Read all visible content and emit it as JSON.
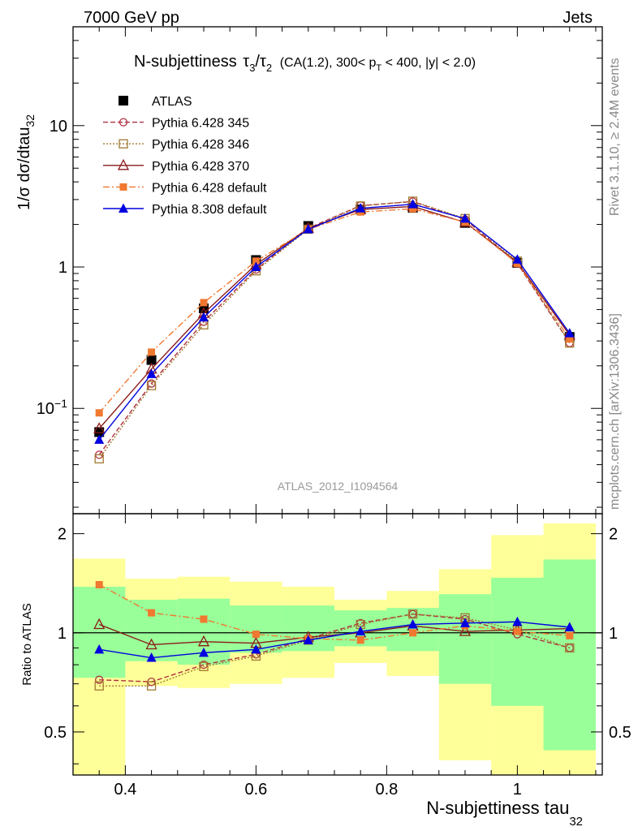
{
  "header": {
    "left": "7000 GeV pp",
    "right": "Jets"
  },
  "side_labels": {
    "rivet": "Rivet 3.1.10, ≥ 2.4M events",
    "mcplots": "mcplots.cern.ch [arXiv:1306.3436]"
  },
  "analysis_id": "ATLAS_2012_I1094564",
  "chart_data": [
    {
      "type": "line",
      "panel": "main",
      "title_parts": {
        "lead": "N-subjettiness",
        "tau_ratio": "τ",
        "idx3": "3",
        "slash": "/",
        "idx2": "2",
        "cuts_a": "(CA(1.2), 300< p",
        "cuts_sub": "T",
        "cuts_b": " < 400, |y| < 2.0)"
      },
      "ylabel": {
        "text": "1/σ dσ/dtau",
        "sub": "32"
      },
      "yscale": "log",
      "ylim": [
        0.018,
        50
      ],
      "xlim": [
        0.32,
        1.13
      ],
      "ytick_labels": [
        {
          "value": 10,
          "label": "10"
        },
        {
          "value": 1,
          "label": "1"
        },
        {
          "value": 0.1,
          "label": "10",
          "sup": "−1"
        }
      ],
      "legend_position": "top-left",
      "x": [
        0.36,
        0.44,
        0.52,
        0.6,
        0.68,
        0.76,
        0.84,
        0.92,
        1.0,
        1.08
      ],
      "series": [
        {
          "name": "ATLAS",
          "color": "#000000",
          "marker": "filled-square",
          "line": "none",
          "values": [
            0.068,
            0.22,
            0.51,
            1.12,
            1.95,
            2.55,
            2.62,
            2.05,
            1.07,
            0.32
          ]
        },
        {
          "name": "Pythia 6.428 345",
          "color": "#b03040",
          "marker": "open-circle",
          "line": "dashed",
          "values": [
            0.047,
            0.15,
            0.41,
            0.96,
            1.88,
            2.72,
            2.9,
            2.17,
            1.06,
            0.29
          ]
        },
        {
          "name": "Pythia 6.428 346",
          "color": "#a07830",
          "marker": "open-square",
          "line": "dotted",
          "values": [
            0.044,
            0.145,
            0.39,
            0.94,
            1.85,
            2.7,
            2.92,
            2.2,
            1.1,
            0.29
          ]
        },
        {
          "name": "Pythia 6.428 370",
          "color": "#8b1a1a",
          "marker": "open-triangle",
          "line": "solid",
          "values": [
            0.072,
            0.19,
            0.47,
            1.04,
            1.88,
            2.55,
            2.68,
            2.07,
            1.08,
            0.33
          ]
        },
        {
          "name": "Pythia 6.428 default",
          "color": "#f07830",
          "marker": "filled-square-small",
          "line": "dashdot",
          "values": [
            0.093,
            0.25,
            0.56,
            1.1,
            1.85,
            2.45,
            2.58,
            2.08,
            1.06,
            0.31
          ]
        },
        {
          "name": "Pythia 8.308 default",
          "color": "#0000e0",
          "marker": "filled-triangle",
          "line": "solid",
          "values": [
            0.06,
            0.175,
            0.44,
            1.0,
            1.85,
            2.6,
            2.78,
            2.2,
            1.13,
            0.34
          ]
        }
      ]
    },
    {
      "type": "line",
      "panel": "ratio",
      "ylabel": "Ratio to ATLAS",
      "xlabel": {
        "text": "N-subjettiness tau",
        "sub": "32"
      },
      "ylim": [
        0.37,
        2.3
      ],
      "xlim": [
        0.32,
        1.13
      ],
      "yticks": [
        0.5,
        1,
        2
      ],
      "ytick_labels": [
        "0.5",
        "1",
        "2"
      ],
      "xticks": [
        0.4,
        0.6,
        0.8,
        1.0
      ],
      "xtick_labels": [
        "0.4",
        "0.6",
        "0.8",
        "1"
      ],
      "bin_edges": [
        0.32,
        0.4,
        0.48,
        0.56,
        0.64,
        0.72,
        0.8,
        0.88,
        0.96,
        1.04,
        1.12
      ],
      "band_outer": [
        [
          0.3,
          1.68
        ],
        [
          0.69,
          1.46
        ],
        [
          0.68,
          1.48
        ],
        [
          0.7,
          1.43
        ],
        [
          0.73,
          1.38
        ],
        [
          0.81,
          1.26
        ],
        [
          0.74,
          1.34
        ],
        [
          0.41,
          1.56
        ],
        [
          0.35,
          1.98
        ],
        [
          0.3,
          2.15
        ]
      ],
      "band_inner": [
        [
          0.73,
          1.38
        ],
        [
          0.82,
          1.26
        ],
        [
          0.8,
          1.27
        ],
        [
          0.87,
          1.21
        ],
        [
          0.88,
          1.21
        ],
        [
          0.91,
          1.17
        ],
        [
          0.88,
          1.19
        ],
        [
          0.7,
          1.31
        ],
        [
          0.6,
          1.47
        ],
        [
          0.44,
          1.67
        ]
      ],
      "x": [
        0.36,
        0.44,
        0.52,
        0.6,
        0.68,
        0.76,
        0.84,
        0.92,
        1.0,
        1.08
      ],
      "series": [
        {
          "name": "Pythia 6.428 345",
          "color": "#b03040",
          "marker": "open-circle",
          "line": "dashed",
          "values": [
            0.72,
            0.71,
            0.8,
            0.86,
            0.96,
            1.07,
            1.14,
            1.1,
            0.99,
            0.9
          ]
        },
        {
          "name": "Pythia 6.428 346",
          "color": "#a07830",
          "marker": "open-square",
          "line": "dotted",
          "values": [
            0.69,
            0.69,
            0.79,
            0.85,
            0.95,
            1.06,
            1.14,
            1.11,
            1.02,
            0.9
          ]
        },
        {
          "name": "Pythia 6.428 370",
          "color": "#8b1a1a",
          "marker": "open-triangle",
          "line": "solid",
          "values": [
            1.06,
            0.92,
            0.94,
            0.93,
            0.97,
            1.0,
            1.05,
            1.01,
            1.02,
            1.03
          ]
        },
        {
          "name": "Pythia 6.428 default",
          "color": "#f07830",
          "marker": "filled-square-small",
          "line": "dashdot",
          "values": [
            1.4,
            1.15,
            1.1,
            0.99,
            0.96,
            0.95,
            1.0,
            1.05,
            1.01,
            0.98
          ]
        },
        {
          "name": "Pythia 8.308 default",
          "color": "#0000e0",
          "marker": "filled-triangle",
          "line": "solid",
          "values": [
            0.89,
            0.84,
            0.87,
            0.89,
            0.95,
            1.01,
            1.06,
            1.07,
            1.08,
            1.04
          ]
        }
      ]
    }
  ]
}
